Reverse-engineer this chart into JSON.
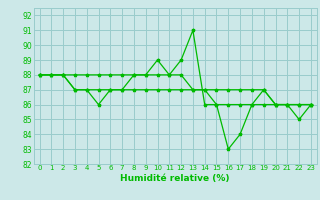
{
  "title": "",
  "xlabel": "Humidité relative (%)",
  "ylabel": "",
  "background_color": "#cce8e8",
  "grid_color": "#99cccc",
  "line_color": "#00bb00",
  "marker_color": "#00bb00",
  "xlim": [
    -0.5,
    23.5
  ],
  "ylim": [
    82,
    92.5
  ],
  "yticks": [
    82,
    83,
    84,
    85,
    86,
    87,
    88,
    89,
    90,
    91,
    92
  ],
  "xticks": [
    0,
    1,
    2,
    3,
    4,
    5,
    6,
    7,
    8,
    9,
    10,
    11,
    12,
    13,
    14,
    15,
    16,
    17,
    18,
    19,
    20,
    21,
    22,
    23
  ],
  "series1_x": [
    0,
    1,
    2,
    3,
    4,
    5,
    6,
    7,
    8,
    9,
    10,
    11,
    12,
    13,
    14,
    15,
    16,
    17,
    18,
    19,
    20,
    21,
    22,
    23
  ],
  "series1_y": [
    88,
    88,
    88,
    87,
    87,
    86,
    87,
    87,
    88,
    88,
    89,
    88,
    89,
    91,
    86,
    86,
    83,
    84,
    86,
    87,
    86,
    86,
    85,
    86
  ],
  "series2_x": [
    0,
    1,
    2,
    3,
    4,
    5,
    6,
    7,
    8,
    9,
    10,
    11,
    12,
    13,
    14,
    15,
    16,
    17,
    18,
    19,
    20,
    21,
    22,
    23
  ],
  "series2_y": [
    88,
    88,
    88,
    88,
    88,
    88,
    88,
    88,
    88,
    88,
    88,
    88,
    88,
    87,
    87,
    87,
    87,
    87,
    87,
    87,
    86,
    86,
    86,
    86
  ],
  "series3_x": [
    0,
    1,
    2,
    3,
    4,
    5,
    6,
    7,
    8,
    9,
    10,
    11,
    12,
    13,
    14,
    15,
    16,
    17,
    18,
    19,
    20,
    21,
    22,
    23
  ],
  "series3_y": [
    88,
    88,
    88,
    87,
    87,
    87,
    87,
    87,
    87,
    87,
    87,
    87,
    87,
    87,
    87,
    86,
    86,
    86,
    86,
    86,
    86,
    86,
    86,
    86
  ]
}
